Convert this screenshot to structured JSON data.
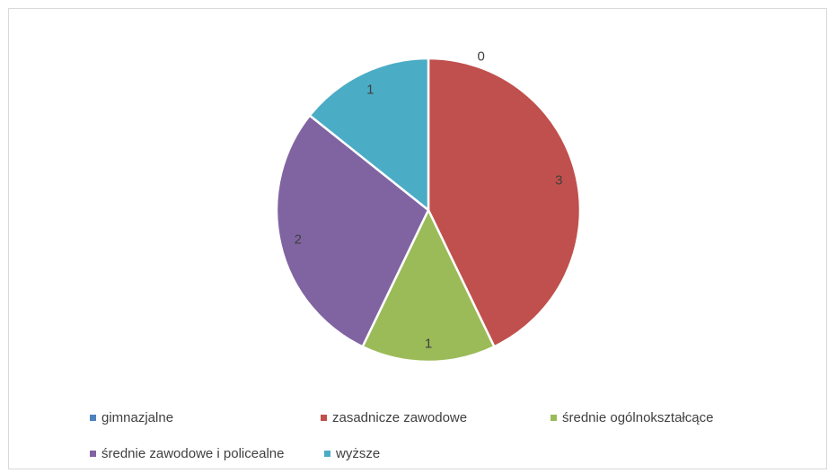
{
  "chart_data": {
    "type": "pie",
    "categories": [
      "gimnazjalne",
      "zasadnicze zawodowe",
      "średnie ogólnokształcące",
      "średnie zawodowe i policealne",
      "wyższe"
    ],
    "values": [
      0,
      3,
      1,
      2,
      1
    ],
    "data_labels": [
      "0",
      "3",
      "1",
      "2",
      "1"
    ],
    "colors": [
      "#4F81BD",
      "#C0504D",
      "#9BBB59",
      "#8064A2",
      "#4BACC6"
    ],
    "start_angle_deg": 0,
    "direction": "clockwise",
    "legend_position": "bottom",
    "title": ""
  }
}
